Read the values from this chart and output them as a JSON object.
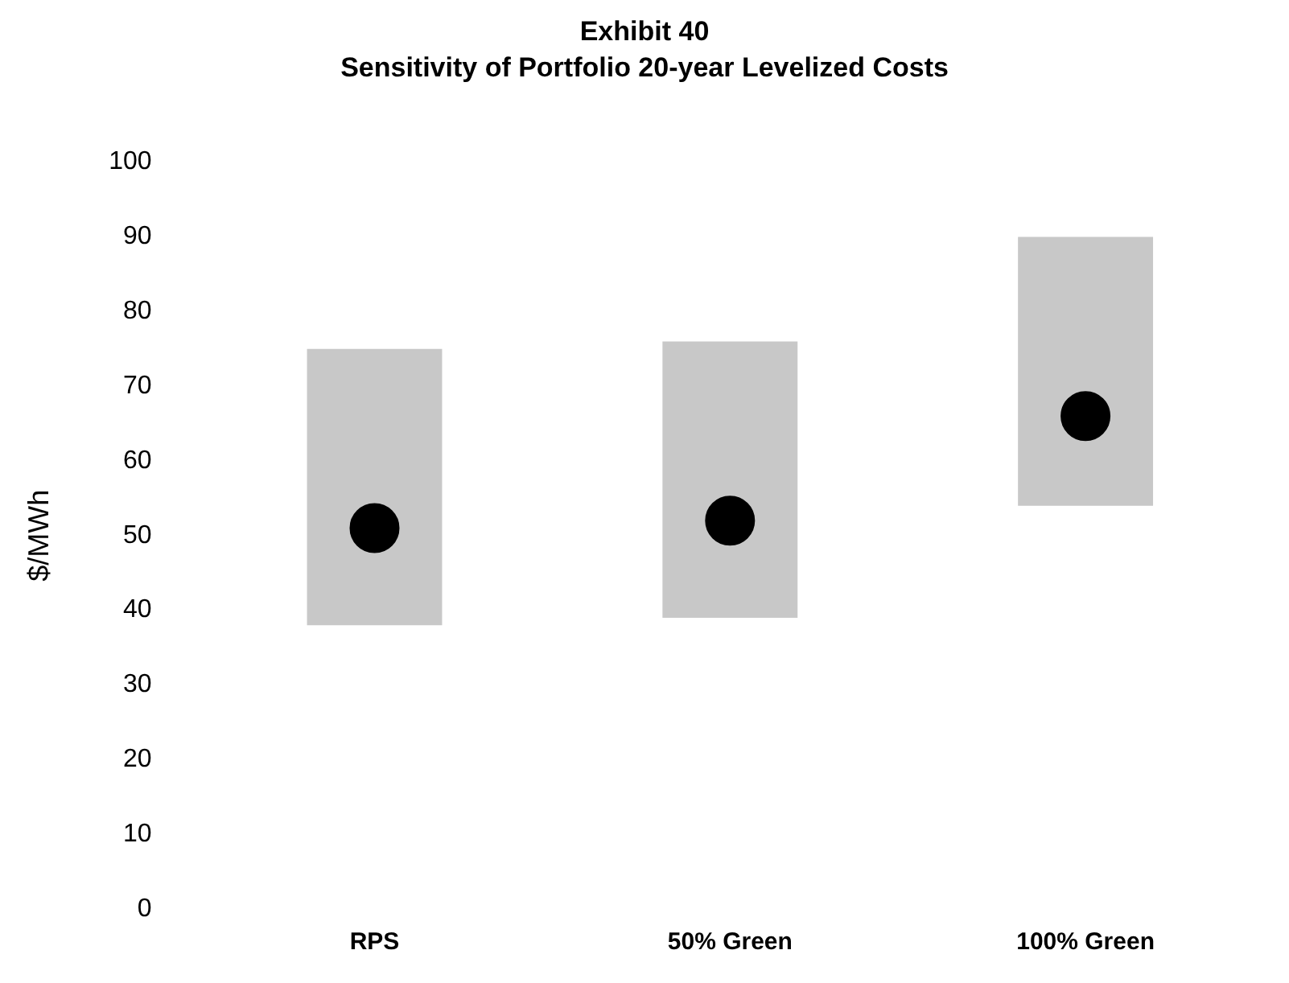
{
  "chart_data": {
    "type": "bar",
    "title": "Exhibit 40",
    "subtitle": "Sensitivity of Portfolio 20-year Levelized Costs",
    "ylabel": "$/MWh",
    "categories": [
      "RPS",
      "50% Green",
      "100% Green"
    ],
    "series": [
      {
        "color": "#c8c8c8",
        "base": [
          38,
          39,
          54
        ],
        "values": [
          37,
          37,
          36
        ]
      },
      {
        "type": "scatter",
        "color": "#000000",
        "marker": "circle",
        "x": [
          "RPS",
          "50% Green",
          "100% Green"
        ],
        "values": [
          51,
          52,
          66
        ]
      }
    ],
    "ylim": [
      0,
      100
    ],
    "yticks": [
      0,
      10,
      20,
      30,
      40,
      50,
      60,
      70,
      80,
      90,
      100
    ],
    "grid": false
  }
}
